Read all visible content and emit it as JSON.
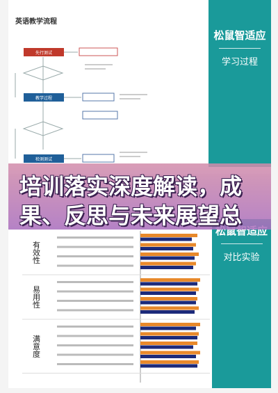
{
  "flowchart": {
    "title": "英语教学流程",
    "nodes": [
      {
        "label": "先行测试"
      },
      {
        "label": "教学过程"
      },
      {
        "label": "检测测试"
      }
    ]
  },
  "top_panel": {
    "brand": "松鼠智适应",
    "subtitle": "学习过程"
  },
  "headline": "培训落实深度解读，成果、反思与未来展望总",
  "bottom_panel": {
    "brand": "松鼠智适应",
    "subtitle": "对比实验"
  },
  "chart_data": {
    "type": "bar",
    "orientation": "horizontal",
    "groups": [
      {
        "label": "有效性",
        "size": 4
      },
      {
        "label": "易用性",
        "size": 4
      },
      {
        "label": "满意度",
        "size": 5
      }
    ],
    "categories": [
      null,
      null,
      null,
      null,
      null,
      null,
      null,
      null,
      null,
      null,
      null,
      null,
      null
    ],
    "xlim": [
      0,
      5
    ],
    "series": [
      {
        "name": null,
        "color": "#e8892b",
        "values": [
          4.1,
          4.0,
          4.2,
          4.0,
          4.3,
          4.2,
          4.1,
          4.2,
          4.3,
          4.2,
          4.1,
          4.3,
          4.2
        ]
      },
      {
        "name": null,
        "color": "#1c2a7a",
        "values": [
          3.7,
          3.8,
          3.9,
          3.8,
          4.1,
          4.0,
          4.0,
          3.9,
          4.0,
          4.1,
          3.8,
          4.0,
          4.1
        ]
      }
    ]
  }
}
